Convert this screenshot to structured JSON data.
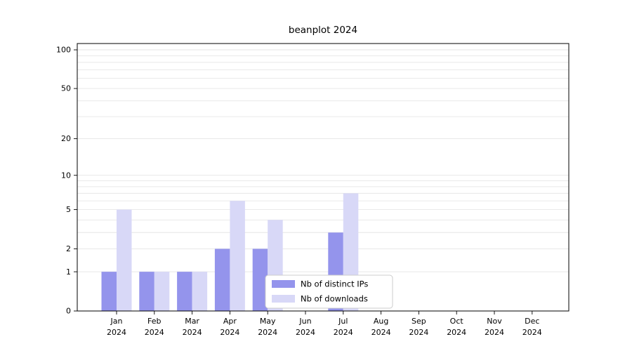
{
  "chart_data": {
    "type": "bar",
    "title": "beanplot 2024",
    "categories": [
      "Jan",
      "Feb",
      "Mar",
      "Apr",
      "May",
      "Jun",
      "Jul",
      "Aug",
      "Sep",
      "Oct",
      "Nov",
      "Dec"
    ],
    "category_year": "2024",
    "series": [
      {
        "name": "Nb of distinct IPs",
        "color": "#9494ec",
        "values": [
          1,
          1,
          1,
          2,
          2,
          0,
          3,
          0,
          0,
          0,
          0,
          0
        ]
      },
      {
        "name": "Nb of downloads",
        "color": "#d8d8f7",
        "values": [
          5,
          1,
          1,
          6,
          4,
          0,
          7,
          0,
          0,
          0,
          0,
          0
        ]
      }
    ],
    "yticks": [
      0,
      1,
      2,
      5,
      10,
      20,
      50,
      100
    ],
    "minor_gridlines": [
      1,
      2,
      3,
      4,
      5,
      6,
      7,
      8,
      9,
      10,
      20,
      30,
      40,
      50,
      60,
      70,
      80,
      90,
      100
    ],
    "ylim": [
      0,
      100
    ],
    "scale": "log1p",
    "grid": true,
    "legend": {
      "position": "lower center"
    },
    "colors": {
      "gridline": "#e6e6e6",
      "axis": "#000000",
      "legend_border": "#cccccc",
      "legend_background": "#ffffff"
    }
  }
}
